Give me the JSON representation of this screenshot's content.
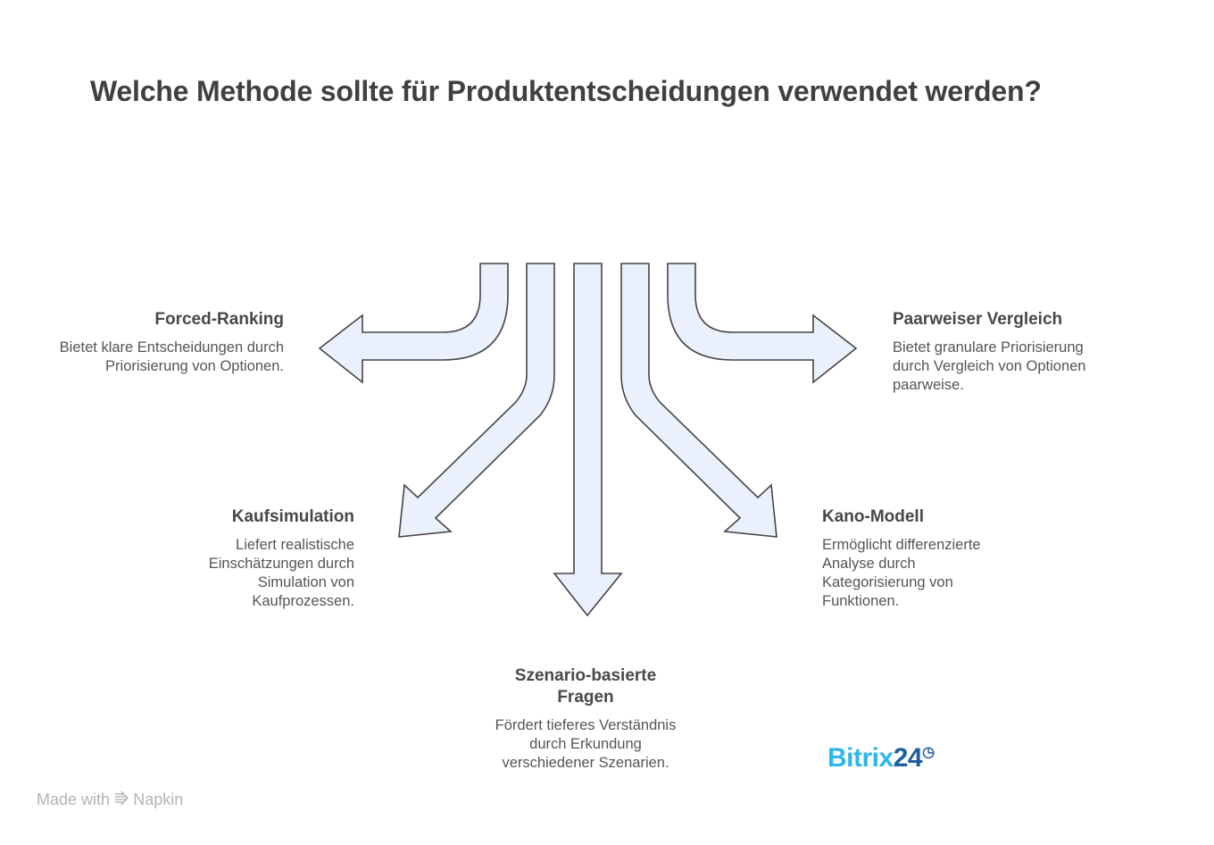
{
  "title": "Welche Methode sollte für Produktentscheidungen verwendet werden?",
  "colors": {
    "arrow_fill": "#eaf1fd",
    "arrow_stroke": "#454545"
  },
  "options": [
    {
      "heading": "Forced-Ranking",
      "text": "Bietet klare Entscheidungen durch Priorisierung von Optionen."
    },
    {
      "heading": "Kaufsimulation",
      "text": "Liefert realistische Einschätzungen durch Simulation von Kaufprozessen."
    },
    {
      "heading": "Szenario-basierte Fragen",
      "text": "Fördert tieferes Verständnis durch Erkundung verschiedener Szenarien."
    },
    {
      "heading": "Kano-Modell",
      "text": "Ermöglicht differenzierte Analyse durch Kategorisierung von Funktionen."
    },
    {
      "heading": "Paarweiser Vergleich",
      "text": "Bietet granulare Priorisierung durch Vergleich von Optionen paarweise."
    }
  ],
  "footer": {
    "made_with": "Made with",
    "napkin": "Napkin",
    "logo_a": "Bitrix",
    "logo_b": "24"
  }
}
